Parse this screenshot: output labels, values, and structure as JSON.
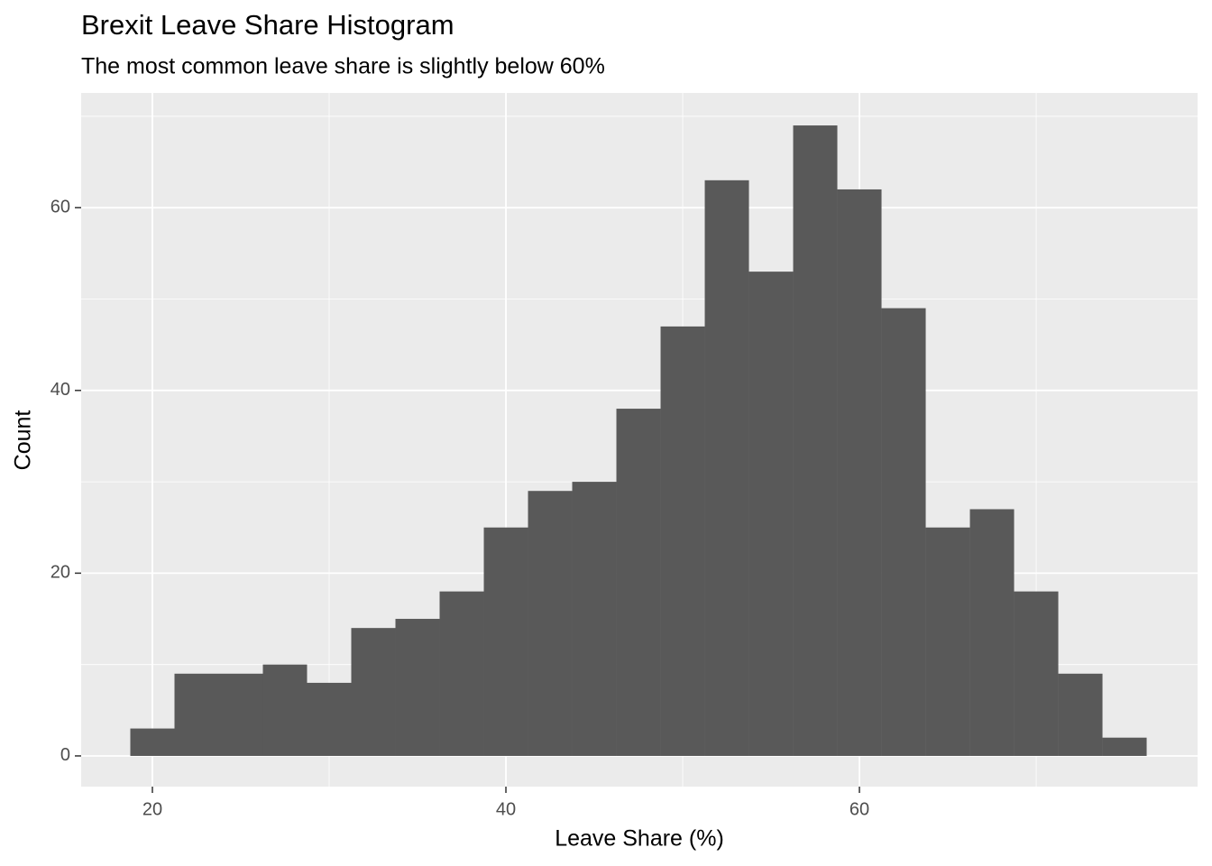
{
  "chart_data": {
    "type": "histogram",
    "title": "Brexit Leave Share Histogram",
    "subtitle": "The most common leave share is slightly below 60%",
    "x_label": "Leave Share (%)",
    "y_label": "Count",
    "bins": [
      18.75,
      21.25,
      23.75,
      26.25,
      28.75,
      31.25,
      33.75,
      36.25,
      38.75,
      41.25,
      43.75,
      46.25,
      48.75,
      51.25,
      53.75,
      56.25,
      58.75,
      61.25,
      63.75,
      66.25,
      68.75,
      71.25,
      73.75,
      76.25
    ],
    "values": [
      3,
      9,
      9,
      10,
      8,
      14,
      15,
      18,
      25,
      29,
      30,
      38,
      47,
      63,
      53,
      69,
      62,
      49,
      25,
      27,
      18,
      9,
      2
    ],
    "color": "#595959",
    "xlim": [
      15.97,
      79.13
    ],
    "xticks": [
      20,
      40,
      60
    ],
    "xminor": [
      30,
      50,
      70
    ],
    "ylim": [
      -3.36,
      72.56
    ],
    "yticks": [
      0,
      20,
      40,
      60
    ],
    "yminor": [
      10,
      30,
      50,
      70
    ],
    "grid": true
  }
}
